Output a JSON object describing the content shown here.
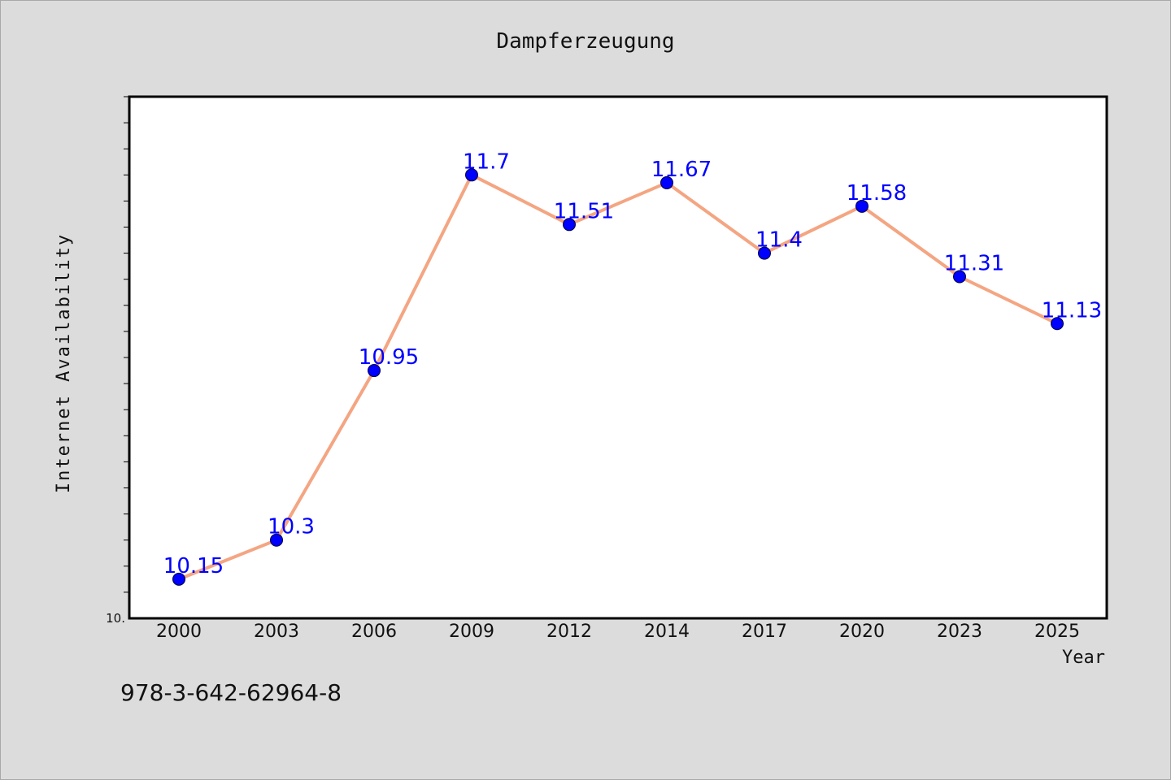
{
  "title": "Dampferzeugung",
  "footer": "978-3-642-62964-8",
  "chart_data": {
    "type": "line",
    "title": "Dampferzeugung",
    "xlabel": "Year",
    "ylabel": "Internet Availability",
    "categories": [
      "2000",
      "2003",
      "2006",
      "2009",
      "2012",
      "2014",
      "2017",
      "2020",
      "2023",
      "2025"
    ],
    "series": [
      {
        "values": [
          10.15,
          10.3,
          10.95,
          11.7,
          11.51,
          11.67,
          11.4,
          11.58,
          11.31,
          11.13
        ],
        "labels": [
          "10.15",
          "10.3",
          "10.95",
          "11.7",
          "11.51",
          "11.67",
          "11.4",
          "11.58",
          "11.31",
          "11.13"
        ]
      }
    ],
    "ylim": [
      10.0,
      12.0
    ],
    "y_tick_labels": [
      "10."
    ],
    "grid": false,
    "colors": {
      "line": "#f4a582",
      "marker": "#0000ff",
      "label": "#0000ff",
      "plot_background": "#ffffff",
      "page_background": "#dcdcdc"
    }
  }
}
